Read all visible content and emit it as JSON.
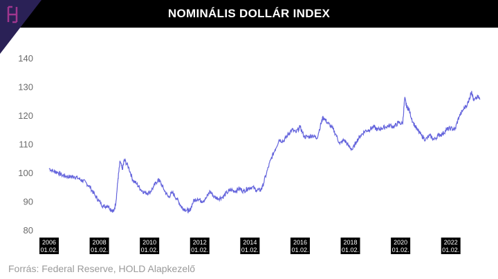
{
  "header": {
    "title": "NOMINÁLIS DOLLÁR INDEX"
  },
  "logo": {
    "icon": "hold-h-logo-icon",
    "color": "#a0368f"
  },
  "source": "Forrás: Federal Reserve, HOLD Alapkezelő",
  "colors": {
    "line": "#6464dc",
    "header_bg": "#000000",
    "tick_box": "#000000"
  },
  "chart_data": {
    "type": "line",
    "title": "NOMINÁLIS DOLLÁR INDEX",
    "xlabel": "",
    "ylabel": "",
    "ylim": [
      80,
      140
    ],
    "yticks": [
      80,
      90,
      100,
      110,
      120,
      130,
      140
    ],
    "xlim": [
      "2006-01-02",
      "2023-04-01"
    ],
    "xticks": [
      {
        "date": "2006-01-02",
        "year": "2006",
        "day": "01.02."
      },
      {
        "date": "2008-01-02",
        "year": "2008",
        "day": "01.02."
      },
      {
        "date": "2010-01-02",
        "year": "2010",
        "day": "01.02."
      },
      {
        "date": "2012-01-02",
        "year": "2012",
        "day": "01.02."
      },
      {
        "date": "2014-01-02",
        "year": "2014",
        "day": "01.02."
      },
      {
        "date": "2016-01-02",
        "year": "2016",
        "day": "01.02."
      },
      {
        "date": "2018-01-02",
        "year": "2018",
        "day": "01.02."
      },
      {
        "date": "2020-01-02",
        "year": "2020",
        "day": "01.02."
      },
      {
        "date": "2022-01-02",
        "year": "2022",
        "day": "01.02."
      }
    ],
    "grid": false,
    "legend": "none",
    "series": [
      {
        "x": [
          "2006-01",
          "2006-03",
          "2006-05",
          "2006-07",
          "2006-09",
          "2006-11",
          "2007-01",
          "2007-03",
          "2007-05",
          "2007-07",
          "2007-09",
          "2007-11",
          "2008-01",
          "2008-03",
          "2008-05",
          "2008-07",
          "2008-08",
          "2008-09",
          "2008-10",
          "2008-11",
          "2008-12",
          "2009-01",
          "2009-03",
          "2009-05",
          "2009-07",
          "2009-09",
          "2009-11",
          "2010-01",
          "2010-03",
          "2010-05",
          "2010-06",
          "2010-08",
          "2010-10",
          "2010-12",
          "2011-02",
          "2011-04",
          "2011-05",
          "2011-07",
          "2011-08",
          "2011-10",
          "2011-12",
          "2012-02",
          "2012-04",
          "2012-06",
          "2012-08",
          "2012-10",
          "2012-12",
          "2013-02",
          "2013-04",
          "2013-06",
          "2013-08",
          "2013-10",
          "2013-12",
          "2014-02",
          "2014-04",
          "2014-06",
          "2014-07",
          "2014-09",
          "2014-11",
          "2015-01",
          "2015-03",
          "2015-05",
          "2015-07",
          "2015-09",
          "2015-11",
          "2016-01",
          "2016-03",
          "2016-05",
          "2016-07",
          "2016-09",
          "2016-11",
          "2016-12",
          "2017-02",
          "2017-04",
          "2017-06",
          "2017-08",
          "2017-10",
          "2017-12",
          "2018-02",
          "2018-04",
          "2018-06",
          "2018-08",
          "2018-10",
          "2018-12",
          "2019-02",
          "2019-04",
          "2019-06",
          "2019-08",
          "2019-10",
          "2019-12",
          "2020-02",
          "2020-03",
          "2020-04",
          "2020-05",
          "2020-07",
          "2020-09",
          "2020-11",
          "2021-01",
          "2021-03",
          "2021-05",
          "2021-07",
          "2021-09",
          "2021-11",
          "2022-01",
          "2022-03",
          "2022-05",
          "2022-07",
          "2022-09",
          "2022-10",
          "2022-11",
          "2022-12",
          "2023-02",
          "2023-03"
        ],
        "values": [
          101.5,
          100.5,
          100.2,
          99.2,
          98.8,
          98.5,
          98.7,
          98.0,
          97.2,
          96.3,
          94.5,
          92.0,
          90.0,
          88.2,
          88.5,
          87.0,
          86.5,
          90.0,
          98.0,
          104.0,
          101.0,
          104.5,
          102.0,
          97.5,
          96.0,
          94.0,
          93.0,
          93.0,
          95.0,
          97.5,
          97.0,
          94.0,
          91.5,
          93.0,
          91.0,
          88.5,
          87.5,
          87.0,
          86.3,
          90.0,
          91.0,
          90.0,
          91.0,
          93.5,
          91.5,
          91.0,
          91.5,
          93.0,
          94.0,
          93.5,
          94.5,
          93.5,
          94.5,
          95.0,
          94.0,
          93.8,
          95.0,
          100.0,
          104.5,
          108.0,
          111.5,
          111.0,
          113.0,
          115.0,
          114.0,
          116.0,
          112.5,
          112.5,
          113.0,
          112.0,
          117.0,
          119.5,
          117.5,
          116.0,
          113.5,
          110.0,
          111.5,
          109.5,
          108.0,
          111.0,
          113.0,
          114.5,
          115.0,
          116.0,
          115.0,
          115.5,
          116.0,
          116.5,
          116.0,
          117.5,
          117.0,
          126.0,
          123.0,
          122.0,
          117.5,
          115.0,
          113.0,
          111.5,
          113.0,
          111.5,
          113.0,
          113.5,
          115.0,
          115.5,
          115.0,
          119.5,
          122.0,
          124.0,
          126.0,
          128.5,
          125.0,
          126.5,
          125.5
        ]
      }
    ]
  }
}
